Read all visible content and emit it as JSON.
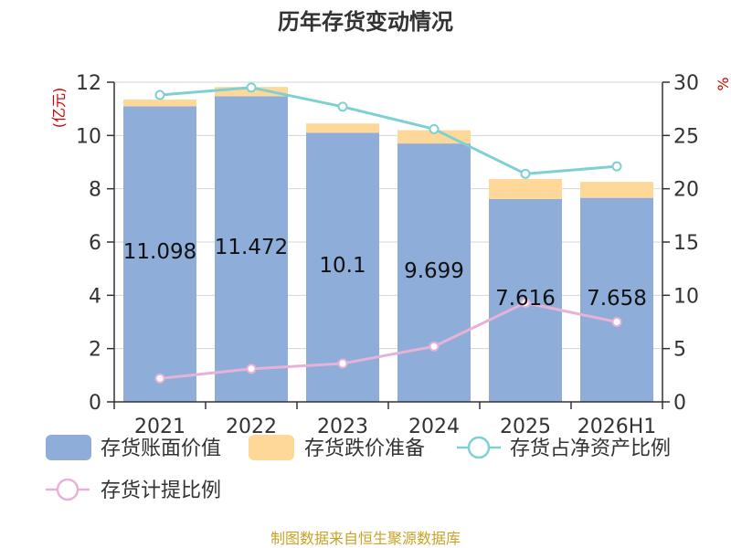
{
  "chart_data": {
    "type": "bar",
    "title": "历年存货变动情况",
    "categories": [
      "2021",
      "2022",
      "2023",
      "2024",
      "2025",
      "2026H1"
    ],
    "series": [
      {
        "name": "存货账面价值",
        "type": "bar",
        "axis": "left",
        "color": "#8eadd9",
        "values": [
          11.098,
          11.472,
          10.1,
          9.699,
          7.616,
          7.658
        ],
        "labels": [
          "11.098",
          "11.472",
          "10.1",
          "9.699",
          "7.616",
          "7.658"
        ]
      },
      {
        "name": "存货跌价准备",
        "type": "bar-stacked",
        "axis": "left",
        "color": "#fdd899",
        "values": [
          0.25,
          0.35,
          0.35,
          0.5,
          0.75,
          0.6
        ]
      },
      {
        "name": "存货占净资产比例",
        "type": "line",
        "axis": "right",
        "color": "#7fd0d2",
        "values": [
          28.8,
          29.5,
          27.7,
          25.6,
          21.4,
          22.1
        ]
      },
      {
        "name": "存货计提比例",
        "type": "line",
        "axis": "right-hidden",
        "color": "#e8b2d8",
        "values": [
          2.2,
          3.1,
          3.6,
          5.2,
          9.3,
          7.5
        ]
      }
    ],
    "y_left": {
      "label": "(亿元)",
      "min": 0,
      "max": 12,
      "ticks": [
        "0",
        "2",
        "4",
        "6",
        "8",
        "10",
        "12"
      ]
    },
    "y_right": {
      "label": "%",
      "min": 0,
      "max": 30,
      "ticks": [
        "0",
        "5",
        "10",
        "15",
        "20",
        "25",
        "30"
      ]
    },
    "grid": true,
    "legend_position": "bottom"
  },
  "source_text": "制图数据来自恒生聚源数据库"
}
